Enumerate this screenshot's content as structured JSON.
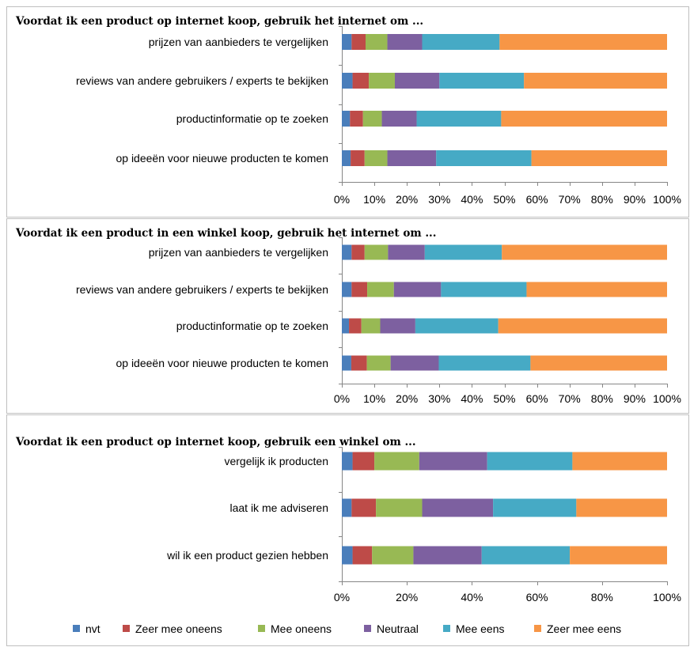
{
  "colors": {
    "nvt": "#4a7ebb",
    "zeer_mee_oneens": "#be4b48",
    "mee_oneens": "#98b954",
    "neutraal": "#7d60a0",
    "mee_eens": "#46aac5",
    "zeer_mee_eens": "#f79646"
  },
  "legend": [
    {
      "label": "nvt",
      "color_key": "nvt"
    },
    {
      "label": "Zeer mee oneens",
      "color_key": "zeer_mee_oneens"
    },
    {
      "label": "Mee oneens",
      "color_key": "mee_oneens"
    },
    {
      "label": "Neutraal",
      "color_key": "neutraal"
    },
    {
      "label": "Mee eens",
      "color_key": "mee_eens"
    },
    {
      "label": "Zeer mee eens",
      "color_key": "zeer_mee_eens"
    }
  ],
  "chart_data": [
    {
      "type": "bar",
      "stacked": "100%",
      "orientation": "horizontal",
      "title": "Voordat ik een product op internet koop, gebruik het internet om ...",
      "categories": [
        "prijzen van aanbieders te vergelijken",
        "reviews van andere gebruikers / experts te bekijken",
        "productinformatie op te zoeken",
        "op ideeën voor nieuwe producten te komen"
      ],
      "series": [
        {
          "name": "nvt",
          "values": [
            3,
            3.3,
            2.5,
            2.7
          ]
        },
        {
          "name": "Zeer mee oneens",
          "values": [
            4.3,
            5,
            4,
            4.3
          ]
        },
        {
          "name": "Mee oneens",
          "values": [
            6.7,
            8,
            5.8,
            7
          ]
        },
        {
          "name": "Neutraal",
          "values": [
            10.7,
            13.7,
            10.7,
            15
          ]
        },
        {
          "name": "Mee eens",
          "values": [
            23.8,
            26,
            26,
            29.3
          ]
        },
        {
          "name": "Zeer mee eens",
          "values": [
            51.5,
            44,
            51,
            41.7
          ]
        }
      ],
      "xlim": [
        0,
        100
      ],
      "ticks": [
        "0%",
        "10%",
        "20%",
        "30%",
        "40%",
        "50%",
        "60%",
        "70%",
        "80%",
        "90%",
        "100%"
      ],
      "grid": false
    },
    {
      "type": "bar",
      "stacked": "100%",
      "orientation": "horizontal",
      "title": "Voordat ik een product in een winkel koop, gebruik het internet om ...",
      "categories": [
        "prijzen van aanbieders te vergelijken",
        "reviews van andere gebruikers / experts te bekijken",
        "productinformatie op te zoeken",
        "op ideeën voor nieuwe producten te komen"
      ],
      "series": [
        {
          "name": "nvt",
          "values": [
            3,
            3,
            2.2,
            2.9
          ]
        },
        {
          "name": "Zeer mee oneens",
          "values": [
            4,
            4.8,
            3.8,
            4.8
          ]
        },
        {
          "name": "Mee oneens",
          "values": [
            7.2,
            8.2,
            5.8,
            7.3
          ]
        },
        {
          "name": "Neutraal",
          "values": [
            11.3,
            14.5,
            10.8,
            14.8
          ]
        },
        {
          "name": "Mee eens",
          "values": [
            23.7,
            26.3,
            25.5,
            28.2
          ]
        },
        {
          "name": "Zeer mee eens",
          "values": [
            50.8,
            43.2,
            51.9,
            42
          ]
        }
      ],
      "xlim": [
        0,
        100
      ],
      "ticks": [
        "0%",
        "10%",
        "20%",
        "30%",
        "40%",
        "50%",
        "60%",
        "70%",
        "80%",
        "90%",
        "100%"
      ],
      "grid": false
    },
    {
      "type": "bar",
      "stacked": "100%",
      "orientation": "horizontal",
      "title": "Voordat ik een product op internet koop, gebruik een winkel om ...",
      "categories": [
        "vergelijk ik producten",
        "laat ik me adviseren",
        "wil ik een product gezien hebben"
      ],
      "series": [
        {
          "name": "nvt",
          "values": [
            3.3,
            3,
            3.3
          ]
        },
        {
          "name": "Zeer mee oneens",
          "values": [
            6.7,
            7.5,
            6
          ]
        },
        {
          "name": "Mee oneens",
          "values": [
            13.8,
            14.2,
            12.7
          ]
        },
        {
          "name": "Neutraal",
          "values": [
            20.9,
            21.8,
            21
          ]
        },
        {
          "name": "Mee eens",
          "values": [
            26.2,
            25.6,
            27.1
          ]
        },
        {
          "name": "Zeer mee eens",
          "values": [
            29.1,
            27.9,
            29.9
          ]
        }
      ],
      "xlim": [
        0,
        100
      ],
      "ticks": [
        "0%",
        "20%",
        "40%",
        "60%",
        "80%",
        "100%"
      ],
      "grid": false
    }
  ]
}
